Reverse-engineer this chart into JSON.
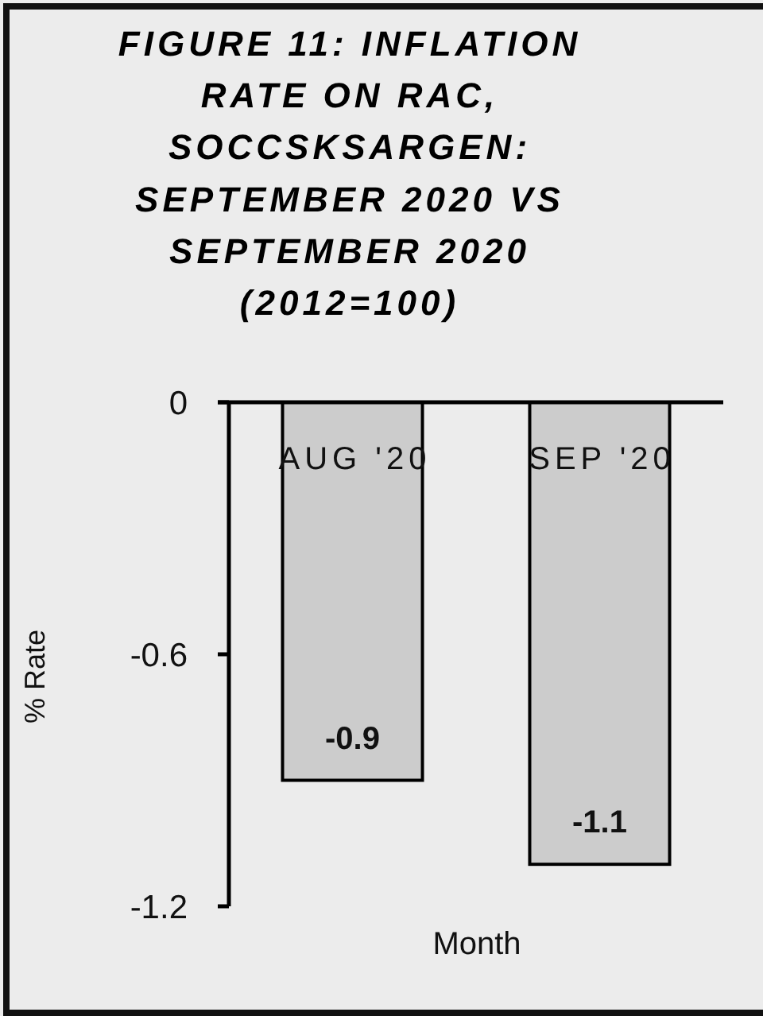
{
  "chart_data": {
    "type": "bar",
    "title": "FIGURE 11: INFLATION RATE ON RAC, SOCCSKSARGEN: SEPTEMBER 2020 VS SEPTEMBER 2020 (2012=100)",
    "xlabel": "Month",
    "ylabel": "% Rate",
    "categories": [
      "AUG '20",
      "SEP '20"
    ],
    "values": [
      -0.9,
      -1.1
    ],
    "color": "#cccccc",
    "ylim": [
      -1.2,
      0
    ],
    "yticks": [
      -1.2,
      -0.6,
      0
    ],
    "data_labels": true
  }
}
